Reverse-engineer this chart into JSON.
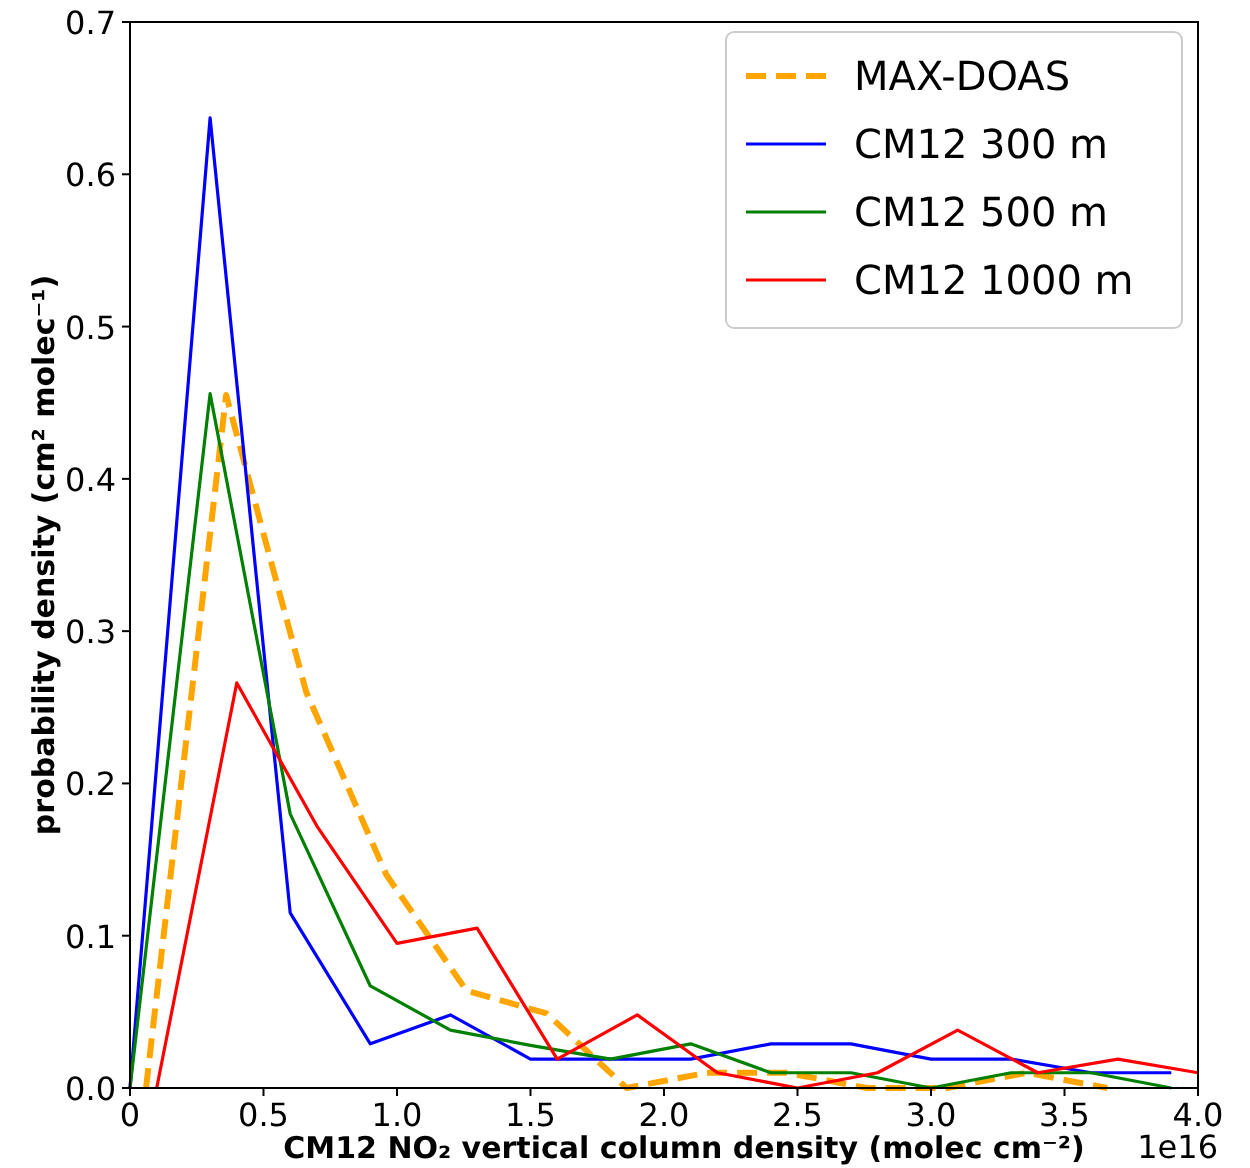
{
  "chart_data": {
    "type": "line",
    "xlabel": "CM12 NO₂ vertical column density  (molec cm⁻²)",
    "ylabel": "probability density (cm² molec⁻¹)",
    "annotations": [
      "1e16"
    ],
    "xlim": [
      0,
      4
    ],
    "xticks": [
      0,
      {
        "value": 0.5,
        "label": "0.5"
      },
      {
        "value": 1,
        "label": "1.0"
      },
      {
        "value": 1.5,
        "label": "1.5"
      },
      {
        "value": 2,
        "label": "2.0"
      },
      {
        "value": 2.5,
        "label": "2.5"
      },
      {
        "value": 3,
        "label": "3.0"
      },
      {
        "value": 3.5,
        "label": "3.5"
      },
      {
        "value": 4,
        "label": "4.0"
      }
    ],
    "ylim": [
      0,
      0.7
    ],
    "yticks": [
      {
        "value": 0,
        "label": "0.0"
      },
      0.1,
      0.2,
      0.3,
      0.4,
      0.5,
      0.6,
      0.7
    ],
    "grid": false,
    "legend": "top right",
    "marker": "none",
    "series": [
      {
        "name": "MAX-DOAS",
        "color": "#ffa500",
        "line_style": "dashed",
        "x": [
          0.06,
          0.36,
          0.66,
          0.96,
          1.26,
          1.56,
          1.86,
          2.16,
          2.46,
          2.76,
          3.06,
          3.36,
          3.66
        ],
        "values": [
          0,
          0.455,
          0.26,
          0.14,
          0.064,
          0.049,
          0,
          0.01,
          0.01,
          0,
          0,
          0.01,
          0
        ]
      },
      {
        "name": "CM12 300 m",
        "color": "#0000ff",
        "line_style": "solid",
        "x": [
          0,
          0.3,
          0.6,
          0.9,
          1.2,
          1.5,
          1.8,
          2.1,
          2.4,
          2.7,
          3.0,
          3.3,
          3.6,
          3.9
        ],
        "values": [
          0,
          0.637,
          0.115,
          0.029,
          0.048,
          0.019,
          0.019,
          0.019,
          0.029,
          0.029,
          0.019,
          0.019,
          0.01,
          0.01
        ]
      },
      {
        "name": "CM12 500 m",
        "color": "#008000",
        "line_style": "solid",
        "x": [
          0,
          0.3,
          0.6,
          0.9,
          1.2,
          1.5,
          1.8,
          2.1,
          2.4,
          2.7,
          3.0,
          3.3,
          3.6,
          3.9
        ],
        "values": [
          0,
          0.456,
          0.18,
          0.067,
          0.038,
          0.028,
          0.019,
          0.029,
          0.01,
          0.01,
          0,
          0.01,
          0.01,
          0
        ]
      },
      {
        "name": "CM12 1000 m",
        "color": "#ff0000",
        "line_style": "solid",
        "x": [
          0.1,
          0.4,
          0.7,
          1.0,
          1.3,
          1.6,
          1.9,
          2.2,
          2.5,
          2.8,
          3.1,
          3.4,
          3.7,
          4.0
        ],
        "values": [
          0,
          0.266,
          0.172,
          0.095,
          0.105,
          0.019,
          0.048,
          0.01,
          0,
          0.01,
          0.038,
          0.01,
          0.019,
          0.01
        ]
      }
    ]
  }
}
